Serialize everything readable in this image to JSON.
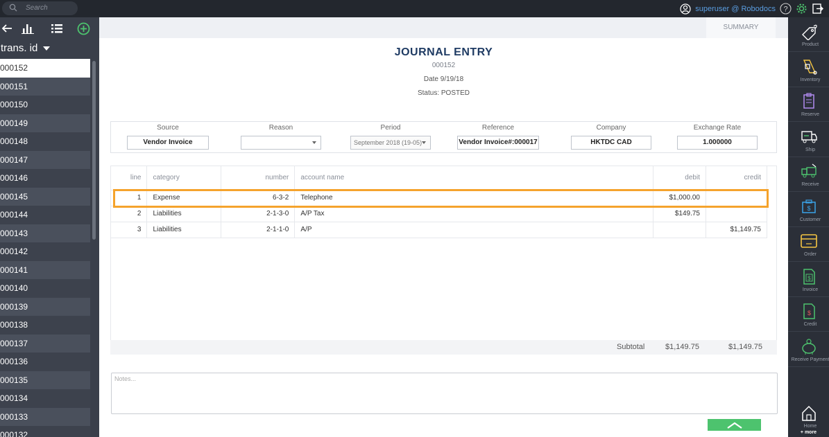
{
  "topbar": {
    "search_placeholder": "Search",
    "user": "superuser @ Robodocs"
  },
  "left": {
    "sort_label": "trans. id",
    "items": [
      "000152",
      "000151",
      "000150",
      "000149",
      "000148",
      "000147",
      "000146",
      "000145",
      "000144",
      "000143",
      "000142",
      "000141",
      "000140",
      "000139",
      "000138",
      "000137",
      "000136",
      "000135",
      "000134",
      "000133",
      "000132"
    ],
    "selected": "000152"
  },
  "main": {
    "summary_tab": "SUMMARY",
    "title": "JOURNAL ENTRY",
    "number": "000152",
    "date": "Date  9/19/18",
    "status": "Status: POSTED",
    "fields": {
      "source_label": "Source",
      "source_value": "Vendor Invoice",
      "reason_label": "Reason",
      "reason_value": "",
      "period_label": "Period",
      "period_value": "September 2018 (19-05)",
      "reference_label": "Reference",
      "reference_value": "Vendor Invoice#:000017",
      "company_label": "Company",
      "company_value": "HKTDC CAD",
      "rate_label": "Exchange Rate",
      "rate_value": "1.000000"
    },
    "table": {
      "headers": {
        "line": "line",
        "category": "category",
        "number": "number",
        "account": "account name",
        "debit": "debit",
        "credit": "credit"
      },
      "rows": [
        {
          "line": "1",
          "category": "Expense",
          "number": "6-3-2",
          "account": "Telephone",
          "debit": "$1,000.00",
          "credit": ""
        },
        {
          "line": "2",
          "category": "Liabilities",
          "number": "2-1-3-0",
          "account": "A/P Tax",
          "debit": "$149.75",
          "credit": ""
        },
        {
          "line": "3",
          "category": "Liabilities",
          "number": "2-1-1-0",
          "account": "A/P",
          "debit": "",
          "credit": "$1,149.75"
        }
      ]
    },
    "subtotal": {
      "label": "Subtotal",
      "debit": "$1,149.75",
      "credit": "$1,149.75"
    },
    "notes_placeholder": "Notes..."
  },
  "right": {
    "items": [
      "Product",
      "Inventory",
      "Reserve",
      "Ship",
      "Receive",
      "Customer",
      "Order",
      "Invoice",
      "Credit",
      "Receive Payment",
      "Home"
    ],
    "more": "+ more"
  },
  "colors": {
    "accent": "#4dc36e",
    "highlight": "#f5a32c",
    "title": "#1f3b63",
    "link": "#5a9de0"
  }
}
